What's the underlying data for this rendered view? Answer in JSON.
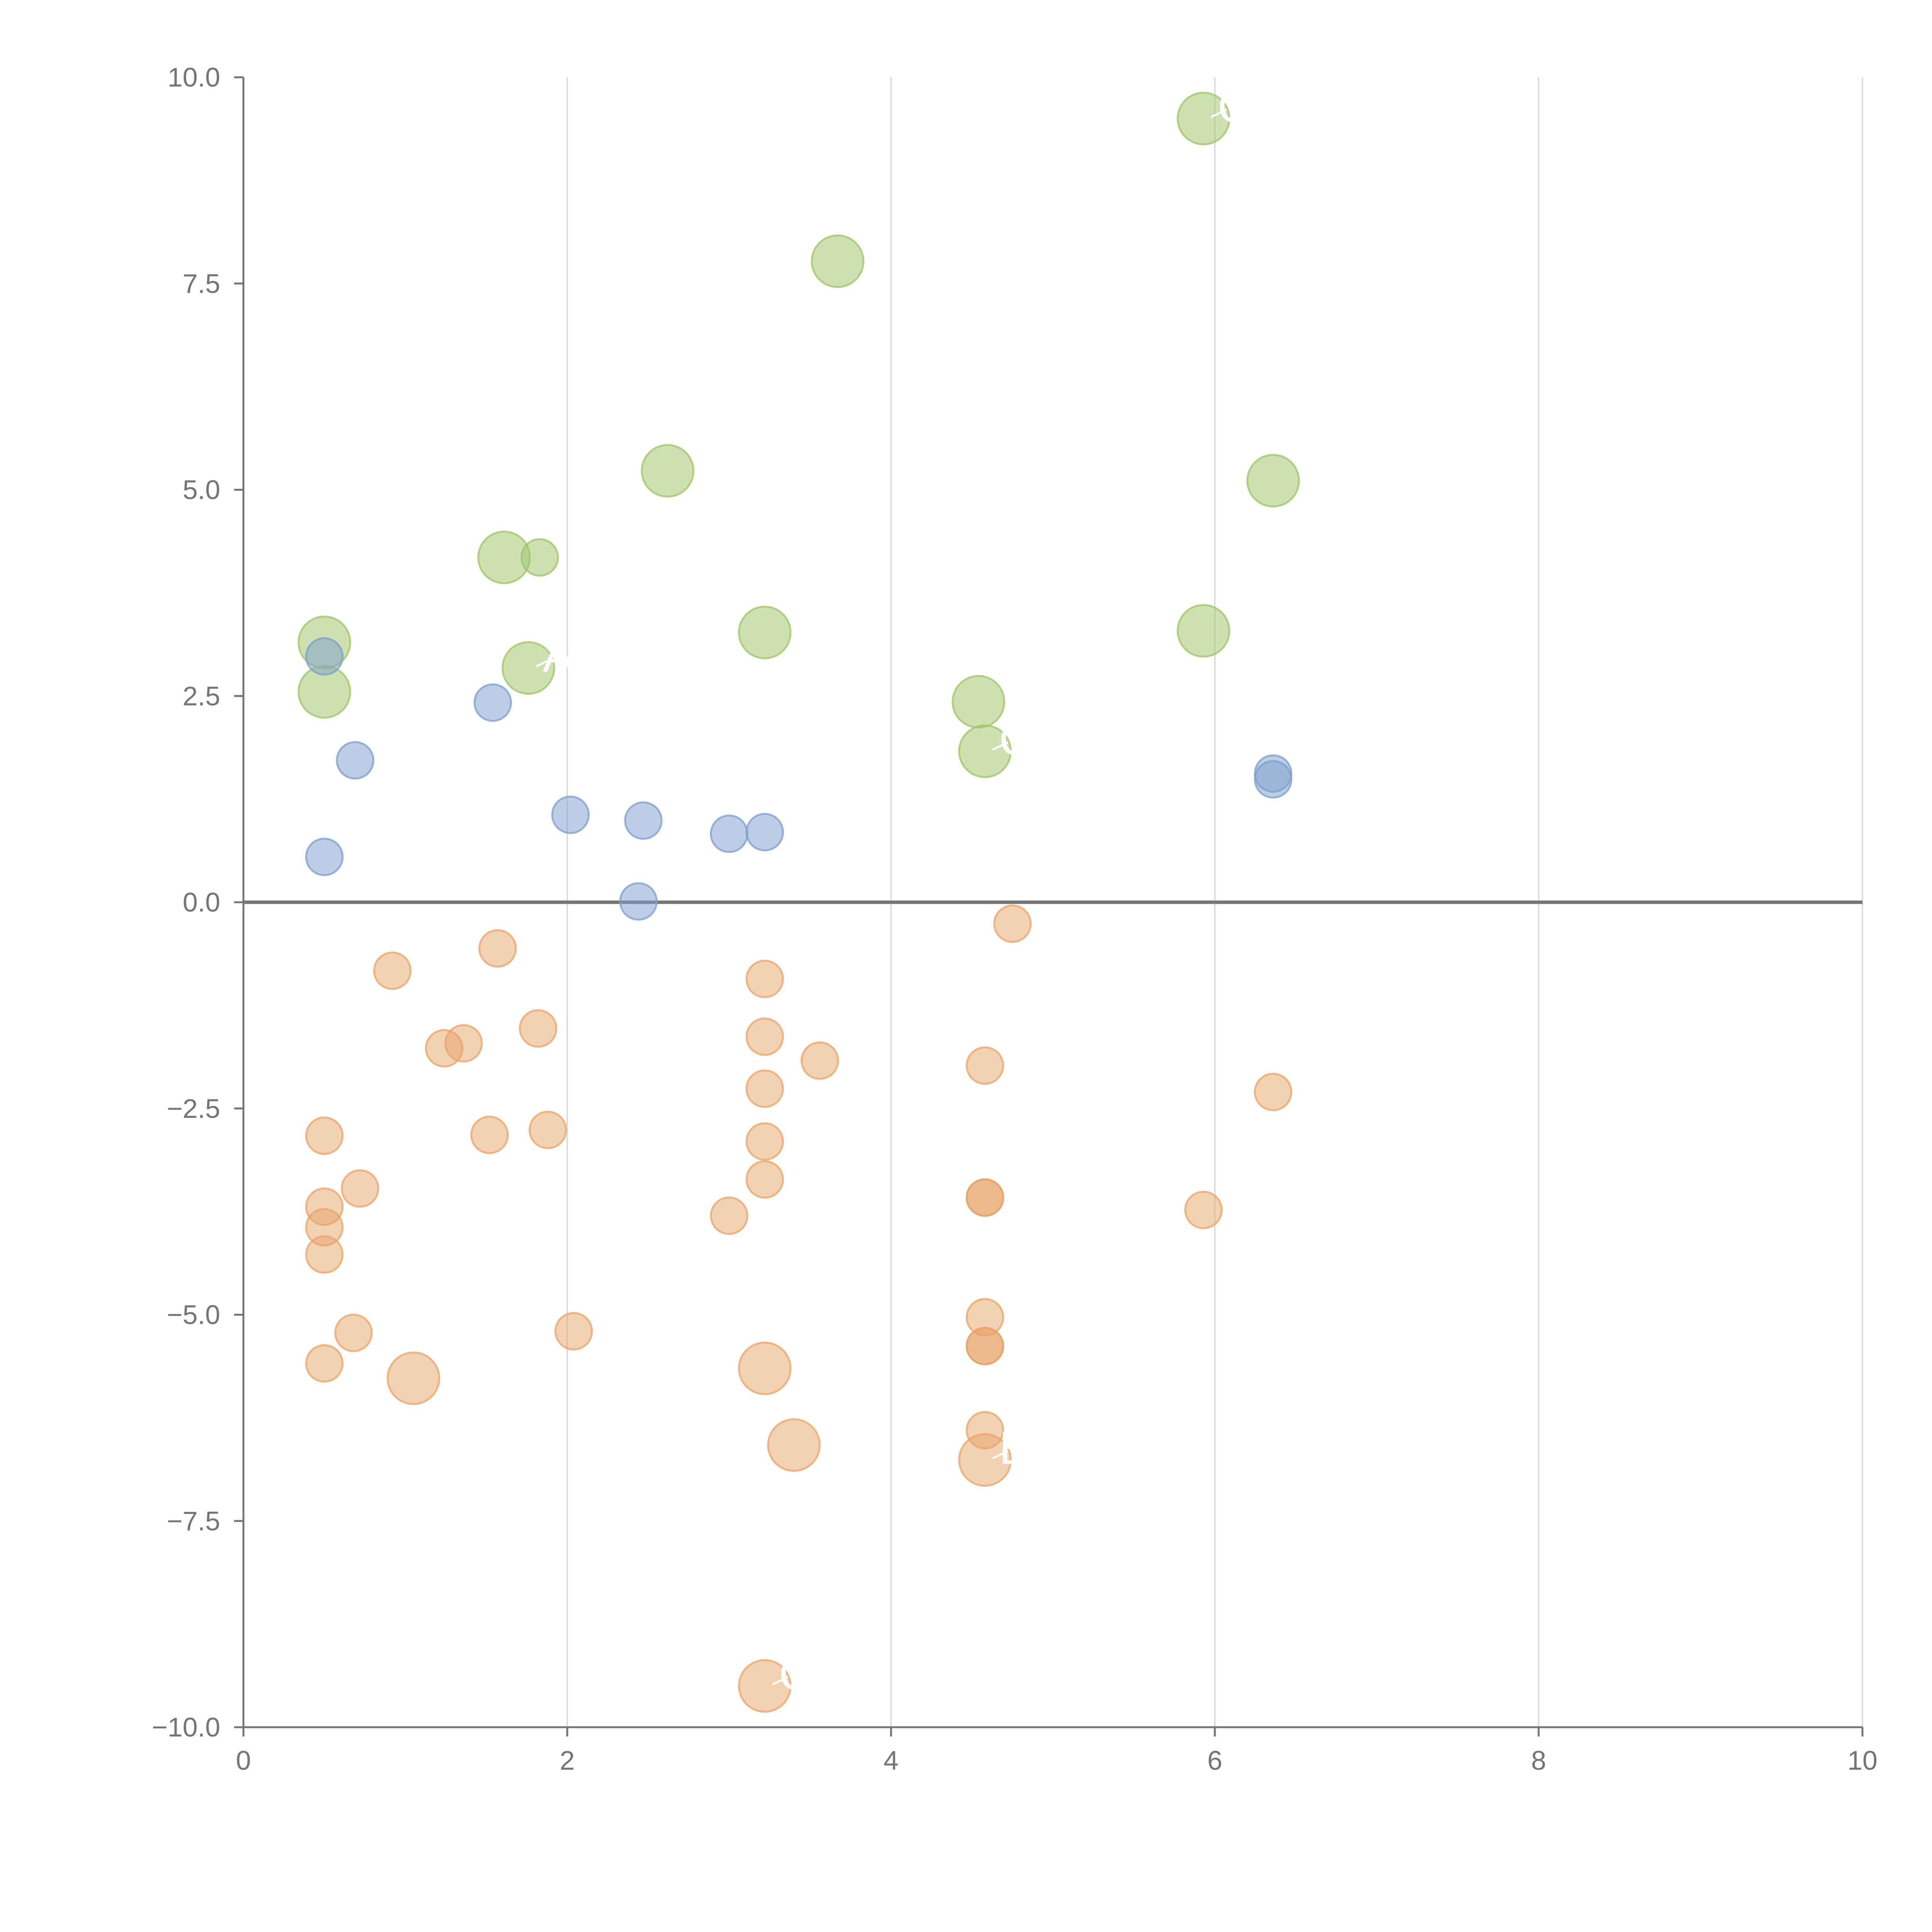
{
  "chart_data": {
    "type": "scatter",
    "variant": "bubble",
    "title": "",
    "xlabel": "",
    "ylabel": "",
    "xlim": [
      0,
      10
    ],
    "ylim": [
      -10,
      10
    ],
    "x_ticks": [
      0,
      2,
      4,
      6,
      8,
      10
    ],
    "y_ticks": [
      -10,
      -7.5,
      -5,
      -2.5,
      0,
      2.5,
      5,
      7.5,
      10
    ],
    "x_tick_labels": [
      "0",
      "2",
      "4",
      "6",
      "8",
      "10"
    ],
    "y_tick_labels": [
      "−10.0",
      "−7.5",
      "−5.0",
      "−2.5",
      "0.0",
      "2.5",
      "5.0",
      "7.5",
      "10.0"
    ],
    "grid": "vertical",
    "zero_line": true,
    "legend": "none",
    "series": [
      {
        "name": "green",
        "color": "#9ec466",
        "points": [
          {
            "x": 5.93,
            "y": 9.5,
            "size": 2.0,
            "label": "C"
          },
          {
            "x": 3.67,
            "y": 7.77,
            "size": 2.0
          },
          {
            "x": 2.62,
            "y": 5.23,
            "size": 2.0
          },
          {
            "x": 6.36,
            "y": 5.11,
            "size": 2.0
          },
          {
            "x": 1.61,
            "y": 4.18,
            "size": 2.0
          },
          {
            "x": 1.83,
            "y": 4.18,
            "size": 1.0
          },
          {
            "x": 0.5,
            "y": 3.15,
            "size": 2.0
          },
          {
            "x": 3.22,
            "y": 3.27,
            "size": 2.0
          },
          {
            "x": 5.93,
            "y": 3.29,
            "size": 2.0
          },
          {
            "x": 1.76,
            "y": 2.84,
            "size": 2.0,
            "label": "A"
          },
          {
            "x": 0.5,
            "y": 2.55,
            "size": 2.0
          },
          {
            "x": 4.54,
            "y": 2.43,
            "size": 2.0
          },
          {
            "x": 4.58,
            "y": 1.83,
            "size": 2.0,
            "label": "C"
          }
        ]
      },
      {
        "name": "blue",
        "color": "#7c9dce",
        "points": [
          {
            "x": 0.5,
            "y": 2.98,
            "size": 1.0
          },
          {
            "x": 1.54,
            "y": 2.42,
            "size": 1.0
          },
          {
            "x": 0.69,
            "y": 1.72,
            "size": 1.0
          },
          {
            "x": 6.36,
            "y": 1.56,
            "size": 1.0
          },
          {
            "x": 6.36,
            "y": 1.49,
            "size": 1.0
          },
          {
            "x": 2.02,
            "y": 1.06,
            "size": 1.0
          },
          {
            "x": 2.47,
            "y": 0.99,
            "size": 1.0
          },
          {
            "x": 3.0,
            "y": 0.83,
            "size": 1.0
          },
          {
            "x": 3.22,
            "y": 0.85,
            "size": 1.0
          },
          {
            "x": 0.5,
            "y": 0.55,
            "size": 1.0
          },
          {
            "x": 2.44,
            "y": 0.01,
            "size": 1.0
          }
        ]
      },
      {
        "name": "orange",
        "color": "#e8a368",
        "points": [
          {
            "x": 4.75,
            "y": -0.26,
            "size": 1.0
          },
          {
            "x": 1.57,
            "y": -0.56,
            "size": 1.0
          },
          {
            "x": 0.92,
            "y": -0.83,
            "size": 1.0
          },
          {
            "x": 3.22,
            "y": -0.93,
            "size": 1.0
          },
          {
            "x": 1.82,
            "y": -1.53,
            "size": 1.0
          },
          {
            "x": 3.22,
            "y": -1.63,
            "size": 1.0
          },
          {
            "x": 1.24,
            "y": -1.77,
            "size": 1.0
          },
          {
            "x": 1.36,
            "y": -1.71,
            "size": 1.0
          },
          {
            "x": 3.56,
            "y": -1.92,
            "size": 1.0
          },
          {
            "x": 4.58,
            "y": -1.98,
            "size": 1.0
          },
          {
            "x": 3.22,
            "y": -2.26,
            "size": 1.0
          },
          {
            "x": 6.36,
            "y": -2.3,
            "size": 1.0
          },
          {
            "x": 0.5,
            "y": -2.83,
            "size": 1.0
          },
          {
            "x": 1.52,
            "y": -2.82,
            "size": 1.0
          },
          {
            "x": 1.88,
            "y": -2.76,
            "size": 1.0
          },
          {
            "x": 3.22,
            "y": -2.9,
            "size": 1.0
          },
          {
            "x": 3.22,
            "y": -3.36,
            "size": 1.0
          },
          {
            "x": 0.72,
            "y": -3.47,
            "size": 1.0
          },
          {
            "x": 0.5,
            "y": -3.69,
            "size": 1.0
          },
          {
            "x": 4.58,
            "y": -3.58,
            "size": 1.0
          },
          {
            "x": 4.58,
            "y": -3.58,
            "size": 1.0
          },
          {
            "x": 5.93,
            "y": -3.73,
            "size": 1.0
          },
          {
            "x": 3.0,
            "y": -3.8,
            "size": 1.0
          },
          {
            "x": 0.5,
            "y": -3.94,
            "size": 1.0
          },
          {
            "x": 0.5,
            "y": -4.27,
            "size": 1.0
          },
          {
            "x": 4.58,
            "y": -5.03,
            "size": 1.0
          },
          {
            "x": 0.68,
            "y": -5.22,
            "size": 1.0
          },
          {
            "x": 2.04,
            "y": -5.2,
            "size": 1.0
          },
          {
            "x": 4.58,
            "y": -5.38,
            "size": 1.0
          },
          {
            "x": 4.58,
            "y": -5.38,
            "size": 1.0
          },
          {
            "x": 0.5,
            "y": -5.59,
            "size": 1.0
          },
          {
            "x": 1.05,
            "y": -5.77,
            "size": 2.0
          },
          {
            "x": 3.22,
            "y": -5.65,
            "size": 2.0
          },
          {
            "x": 4.58,
            "y": -6.4,
            "size": 1.0
          },
          {
            "x": 3.4,
            "y": -6.58,
            "size": 2.0
          },
          {
            "x": 4.58,
            "y": -6.76,
            "size": 2.0,
            "label": "B"
          },
          {
            "x": 3.22,
            "y": -9.5,
            "size": 2.0,
            "label": "C"
          }
        ]
      }
    ]
  }
}
